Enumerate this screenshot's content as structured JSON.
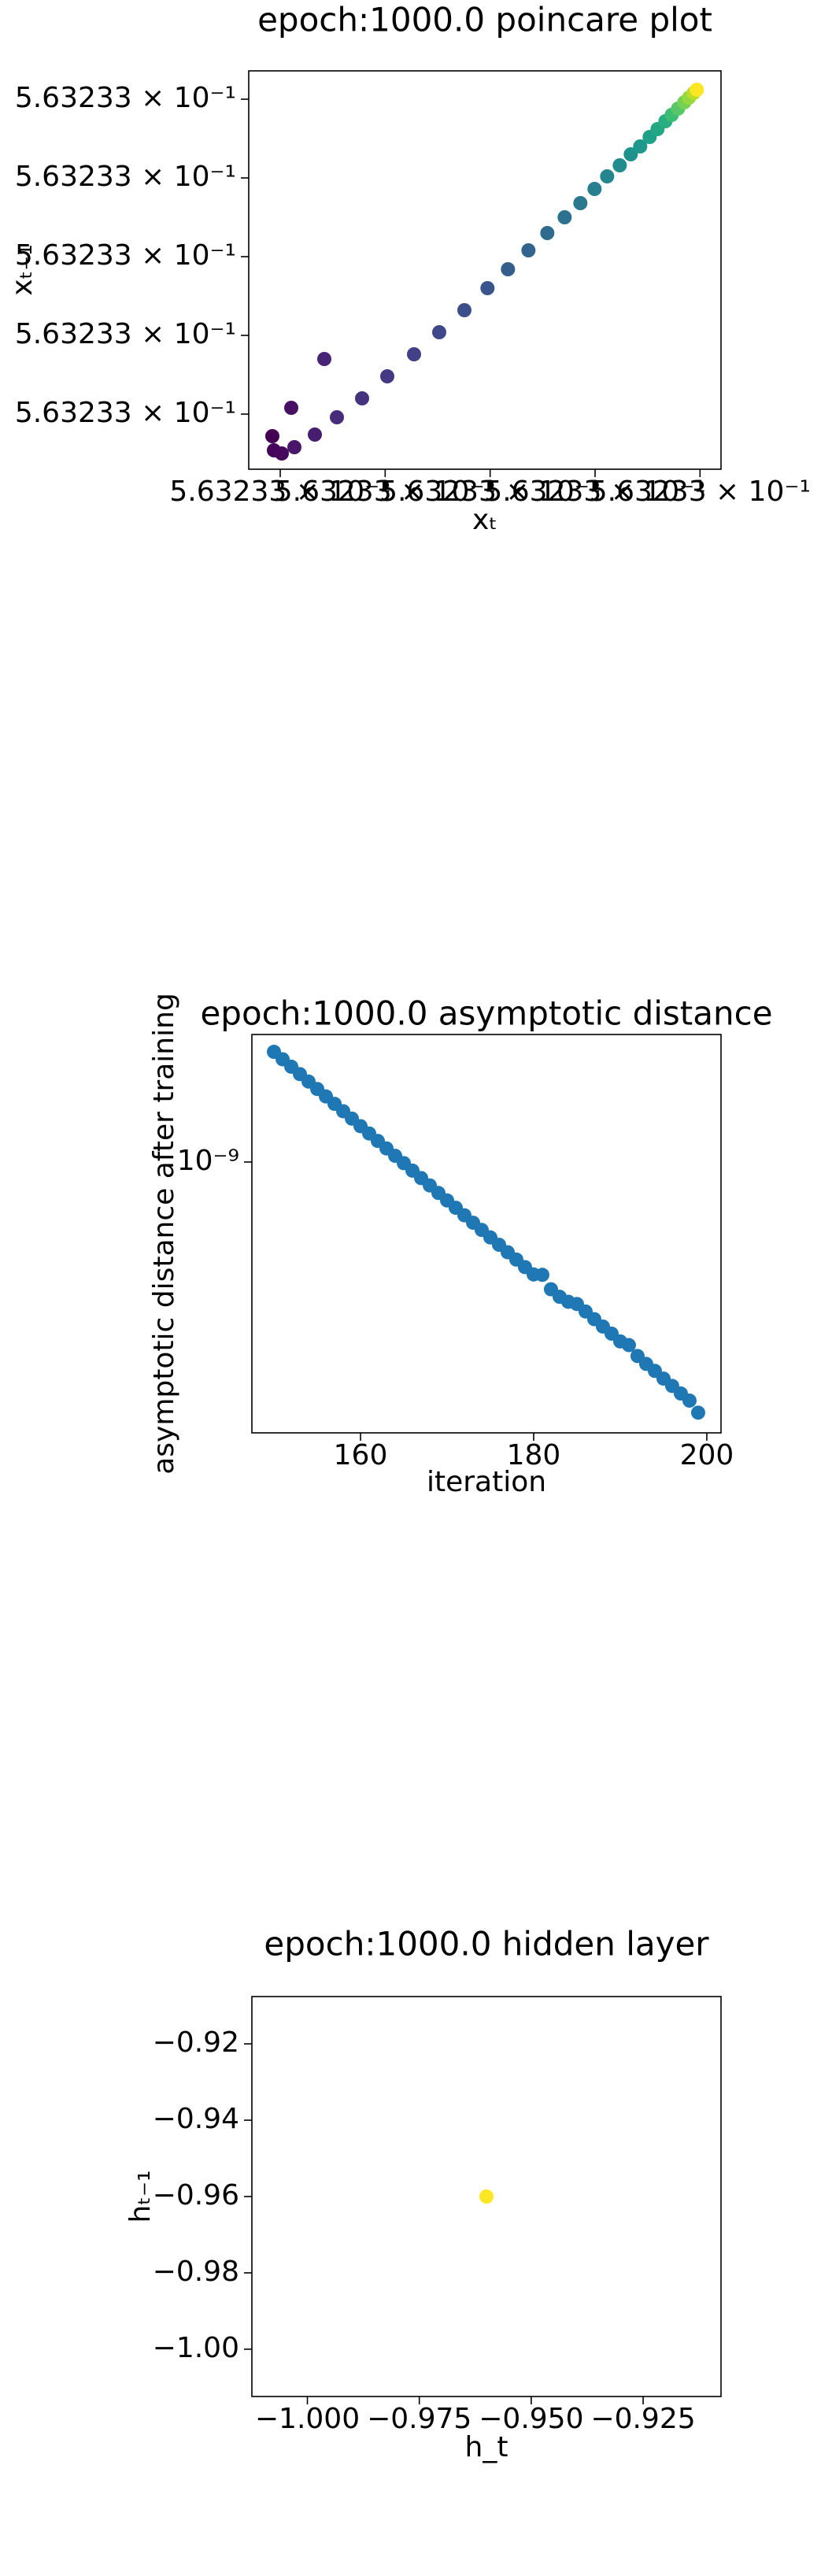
{
  "chart_data": [
    {
      "type": "scatter",
      "title": "epoch:1000.0 poincare plot",
      "x_label": "xₜ",
      "y_label": "xₜ₋₁",
      "x": [
        0.5632330185,
        0.5632330188,
        0.5632330203,
        0.5632330221,
        0.5632330227,
        0.5632330266,
        0.5632330284,
        0.5632330308,
        0.5632330356,
        0.5632330404,
        0.5632330455,
        0.5632330503,
        0.5632330551,
        0.5632330595,
        0.5632330634,
        0.5632330673,
        0.5632330709,
        0.5632330742,
        0.5632330772,
        0.5632330799,
        0.5632330823,
        0.5632330847,
        0.5632330868,
        0.5632330886,
        0.5632330904,
        0.5632330919,
        0.5632330934,
        0.5632330946,
        0.5632330958,
        0.563233097,
        0.5632330979,
        0.5632330988,
        0.5632330994
      ],
      "values": [
        0.5632330144,
        0.5632330108,
        0.56323301,
        0.5632330216,
        0.5632330116,
        0.5632330148,
        0.563233034,
        0.5632330192,
        0.563233024,
        0.5632330296,
        0.5632330352,
        0.5632330408,
        0.5632330464,
        0.563233052,
        0.5632330568,
        0.5632330616,
        0.563233066,
        0.56323307,
        0.5632330736,
        0.5632330772,
        0.5632330804,
        0.5632330832,
        0.563233086,
        0.563233088,
        0.5632330904,
        0.5632330924,
        0.5632330944,
        0.563233096,
        0.5632330976,
        0.5632330992,
        0.5632331004,
        0.5632331016,
        0.5632331024
      ],
      "colors": [
        "#440154",
        "#450559",
        "#46085c",
        "#471063",
        "#481769",
        "#481d6f",
        "#482475",
        "#472c7a",
        "#46337f",
        "#443a83",
        "#424086",
        "#3f4889",
        "#3c4f8a",
        "#39558c",
        "#355e8d",
        "#32648e",
        "#2f6b8e",
        "#2c718e",
        "#2a788e",
        "#277e8e",
        "#25858e",
        "#228b8d",
        "#20928c",
        "#1f988b",
        "#1fa188",
        "#22a785",
        "#28ae80",
        "#3dbc74",
        "#56c667",
        "#75d054",
        "#95d840",
        "#bade28",
        "#fde725"
      ],
      "xlim": [
        0.563233014,
        0.563233104
      ],
      "ylim": [
        0.563233006,
        0.5632331072
      ],
      "xticks": [
        {
          "value": 0.56323302,
          "label": "5.63233 × 10⁻¹"
        },
        {
          "value": 0.56323304,
          "label": "5.63233 × 10⁻¹"
        },
        {
          "value": 0.56323306,
          "label": "5.63233 × 10⁻¹"
        },
        {
          "value": 0.56323308,
          "label": "5.63233 × 10⁻¹"
        },
        {
          "value": 0.5632331,
          "label": "5.63233 × 10⁻¹"
        }
      ],
      "yticks": [
        {
          "value": 0.56323302,
          "label": "5.63233 × 10⁻¹"
        },
        {
          "value": 0.56323304,
          "label": "5.63233 × 10⁻¹"
        },
        {
          "value": 0.56323306,
          "label": "5.63233 × 10⁻¹"
        },
        {
          "value": 0.56323308,
          "label": "5.63233 × 10⁻¹"
        },
        {
          "value": 0.5632331,
          "label": "5.63233 × 10⁻¹"
        }
      ]
    },
    {
      "type": "scatter",
      "title": "epoch:1000.0 asymptotic distance",
      "x_label": "iteration",
      "y_label": "asymptotic distance after training",
      "log_y": true,
      "color": "#1f77b4",
      "x": [
        150,
        151,
        152,
        153,
        154,
        155,
        156,
        157,
        158,
        159,
        160,
        161,
        162,
        163,
        164,
        165,
        166,
        167,
        168,
        169,
        170,
        171,
        172,
        173,
        174,
        175,
        176,
        177,
        178,
        179,
        180,
        181,
        182,
        183,
        184,
        185,
        186,
        187,
        188,
        189,
        190,
        191,
        192,
        193,
        194,
        195,
        196,
        197,
        198,
        199
      ],
      "values": [
        1.496e-09,
        1.456e-09,
        1.417e-09,
        1.379e-09,
        1.342e-09,
        1.306e-09,
        1.271e-09,
        1.237e-09,
        1.204e-09,
        1.172e-09,
        1.14e-09,
        1.11e-09,
        1.08e-09,
        1.051e-09,
        1.023e-09,
        9.96e-10,
        9.69e-10,
        9.43e-10,
        9.18e-10,
        8.93e-10,
        8.69e-10,
        8.46e-10,
        8.23e-10,
        8.01e-10,
        7.8e-10,
        7.59e-10,
        7.39e-10,
        7.19e-10,
        7e-10,
        6.81e-10,
        6.63e-10,
        6.62e-10,
        6.28e-10,
        6.11e-10,
        6e-10,
        5.95e-10,
        5.79e-10,
        5.63e-10,
        5.48e-10,
        5.34e-10,
        5.19e-10,
        5.12e-10,
        4.92e-10,
        4.78e-10,
        4.66e-10,
        4.53e-10,
        4.41e-10,
        4.29e-10,
        4.18e-10,
        4e-10
      ],
      "xlim": [
        147.45,
        201.64
      ],
      "ylim": [
        3.715e-10,
        1.594e-09
      ],
      "xticks": [
        160,
        180,
        200
      ],
      "yticks": [
        {
          "value": 1e-09,
          "label": "10⁻⁹"
        }
      ]
    },
    {
      "type": "scatter",
      "title": "epoch:1000.0 hidden layer",
      "x_label": "h_t",
      "y_label": "hₜ₋₁",
      "color": "#fde725",
      "x": [
        -0.96
      ],
      "values": [
        -0.96
      ],
      "xlim": [
        -1.0124,
        -0.9076
      ],
      "ylim": [
        -1.0124,
        -0.9076
      ],
      "xticks": [
        {
          "value": -1.0,
          "label": "−1.000"
        },
        {
          "value": -0.975,
          "label": "−0.975"
        },
        {
          "value": -0.95,
          "label": "−0.950"
        },
        {
          "value": -0.925,
          "label": "−0.925"
        }
      ],
      "yticks": [
        {
          "value": -0.92,
          "label": "−0.92"
        },
        {
          "value": -0.94,
          "label": "−0.94"
        },
        {
          "value": -0.96,
          "label": "−0.96"
        },
        {
          "value": -0.98,
          "label": "−0.98"
        },
        {
          "value": -1.0,
          "label": "−1.00"
        }
      ]
    }
  ]
}
